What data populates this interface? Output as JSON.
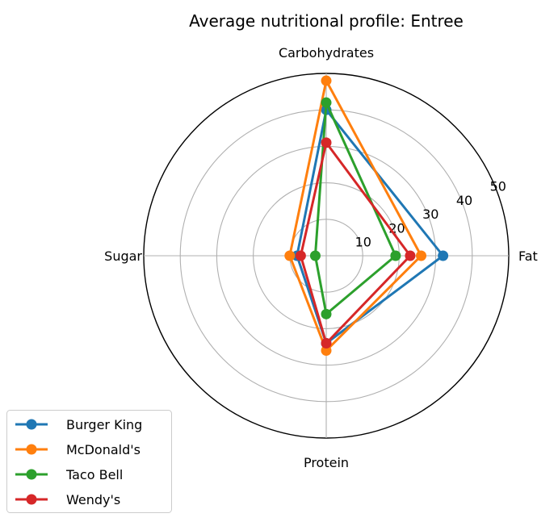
{
  "chart_data": {
    "type": "radar",
    "title": "Average nutritional profile: Entree",
    "axes": [
      "Fat",
      "Carbohydrates",
      "Sugar",
      "Protein"
    ],
    "rmax": 50,
    "rticks": [
      10,
      20,
      30,
      40,
      50
    ],
    "rtick_labels": [
      "10",
      "20",
      "30",
      "40",
      "50"
    ],
    "grid": true,
    "legend_position": "bottom-left",
    "series": [
      {
        "name": "Burger King",
        "values": [
          32,
          40,
          8,
          24
        ],
        "color": "#1f77b4"
      },
      {
        "name": "McDonald's",
        "values": [
          26,
          48,
          10,
          26
        ],
        "color": "#ff7f0e"
      },
      {
        "name": "Taco Bell",
        "values": [
          19,
          42,
          3,
          16
        ],
        "color": "#2ca02c"
      },
      {
        "name": "Wendy's",
        "values": [
          23,
          31,
          7,
          24
        ],
        "color": "#d62728"
      }
    ]
  }
}
